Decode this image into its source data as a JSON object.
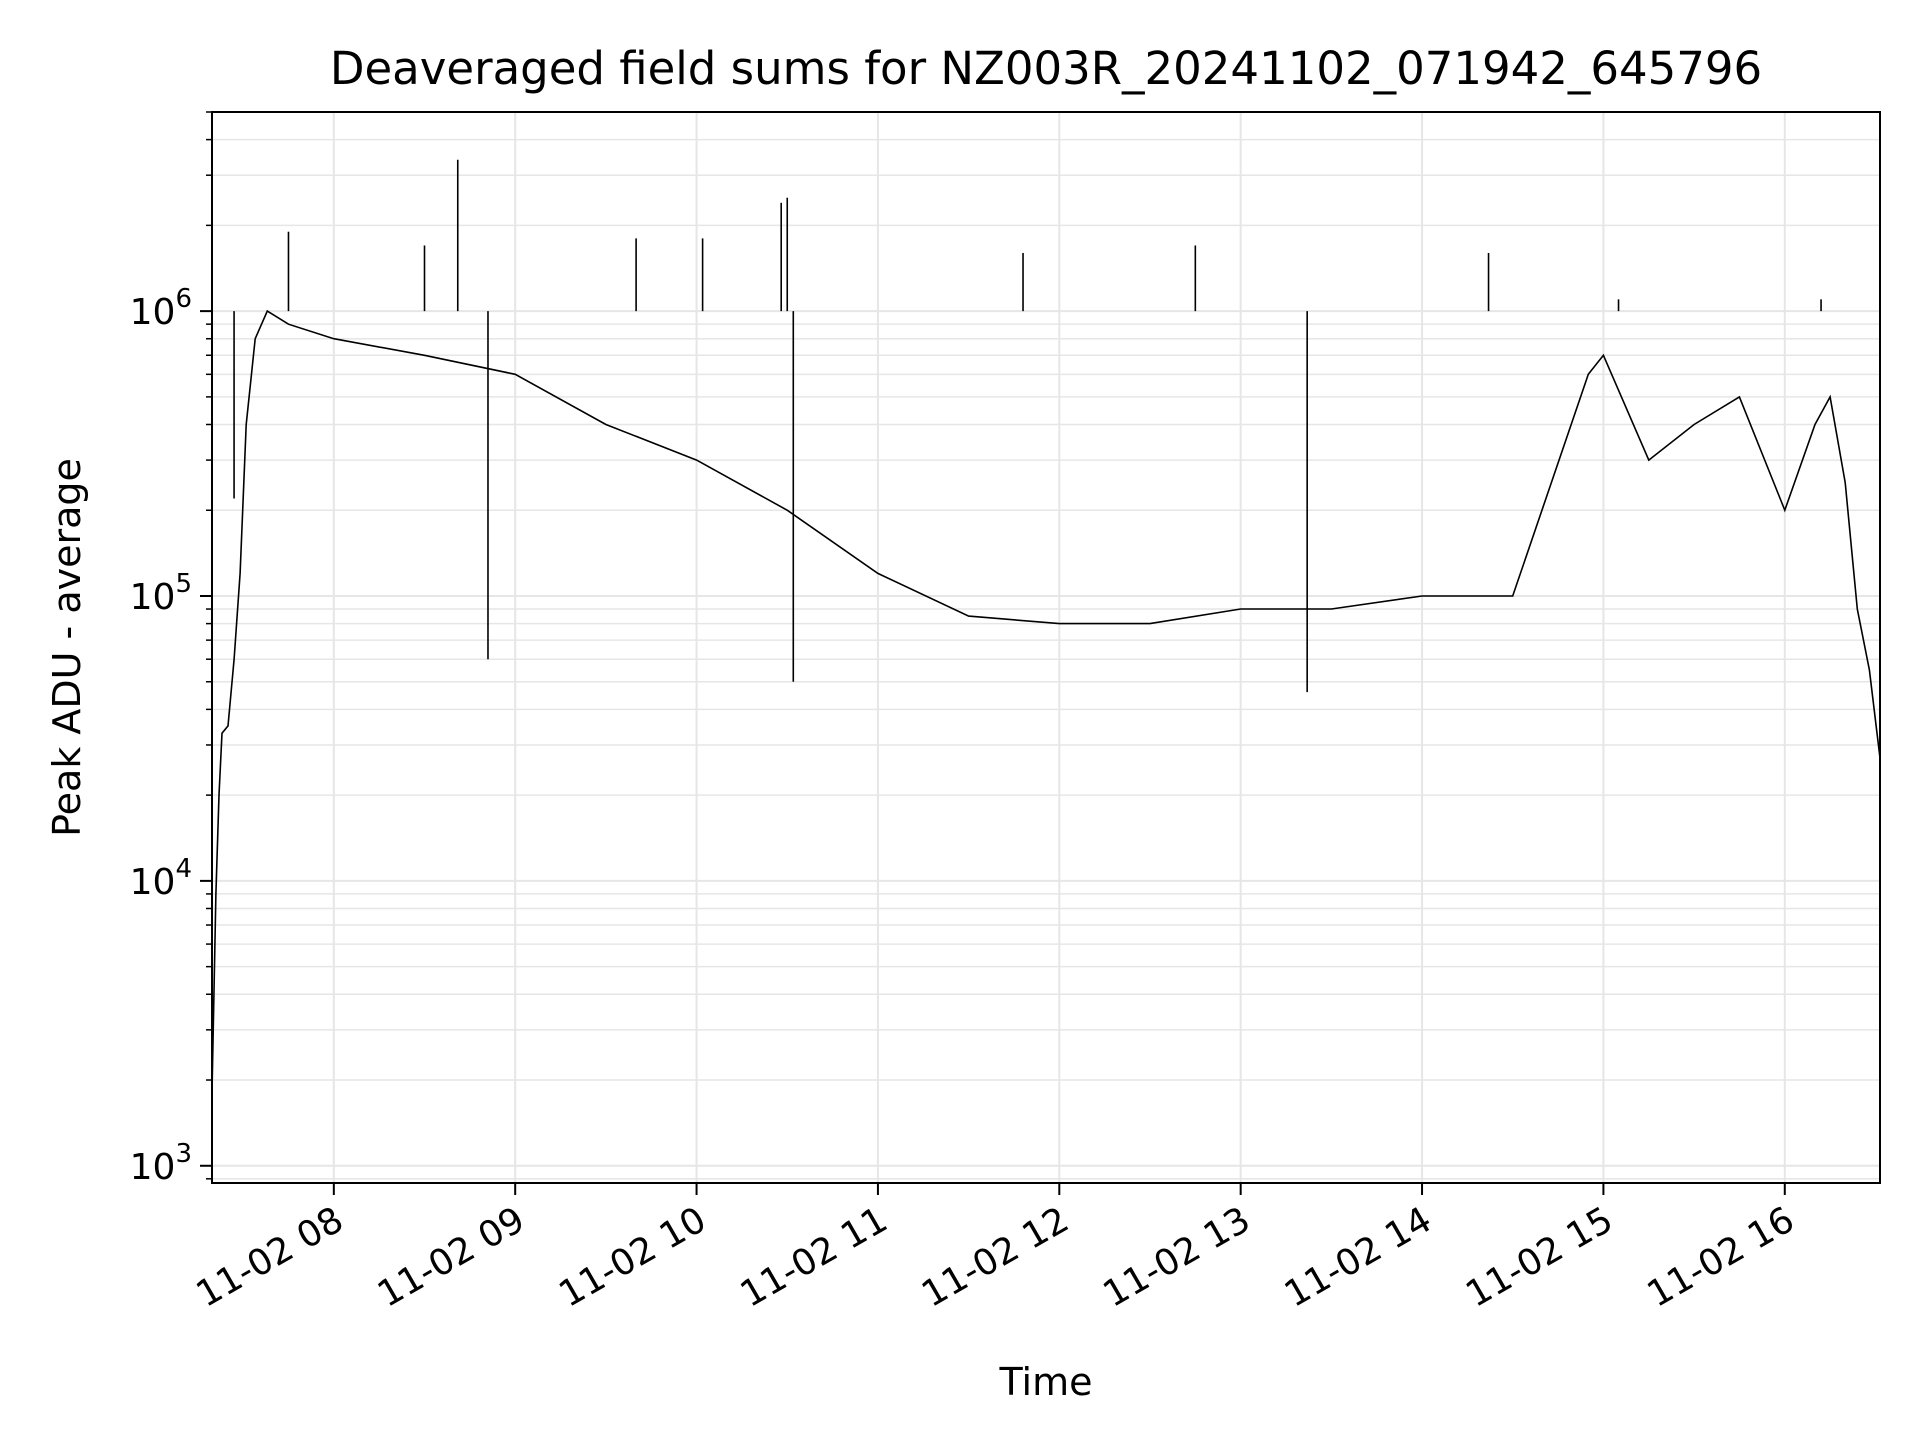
{
  "chart_data": {
    "type": "line",
    "title": "Deaveraged field sums for NZ003R_20241102_071942_645796",
    "xlabel": "Time",
    "ylabel": "Peak ADU - average",
    "yscale": "log",
    "ylim": [
      870,
      5000000
    ],
    "xlim": [
      "2024-11-02 07:19:42",
      "2024-11-02 16:31:30"
    ],
    "grid": true,
    "line_color": "#000000",
    "x_ticks": [
      {
        "t": "2024-11-02 08:00",
        "label": "11-02 08"
      },
      {
        "t": "2024-11-02 09:00",
        "label": "11-02 09"
      },
      {
        "t": "2024-11-02 10:00",
        "label": "11-02 10"
      },
      {
        "t": "2024-11-02 11:00",
        "label": "11-02 11"
      },
      {
        "t": "2024-11-02 12:00",
        "label": "11-02 12"
      },
      {
        "t": "2024-11-02 13:00",
        "label": "11-02 13"
      },
      {
        "t": "2024-11-02 14:00",
        "label": "11-02 14"
      },
      {
        "t": "2024-11-02 15:00",
        "label": "11-02 15"
      },
      {
        "t": "2024-11-02 16:00",
        "label": "11-02 16"
      }
    ],
    "y_ticks": [
      {
        "value": 1000,
        "base": "10",
        "exp": "3"
      },
      {
        "value": 10000,
        "base": "10",
        "exp": "4"
      },
      {
        "value": 100000,
        "base": "10",
        "exp": "5"
      },
      {
        "value": 1000000,
        "base": "10",
        "exp": "6"
      }
    ],
    "series": [
      {
        "color": "#000000",
        "points": [
          [
            "2024-11-02 07:19:42",
            1800
          ],
          [
            "2024-11-02 07:21:00",
            9000
          ],
          [
            "2024-11-02 07:22:00",
            20000
          ],
          [
            "2024-11-02 07:23:00",
            33000
          ],
          [
            "2024-11-02 07:25:00",
            35000
          ],
          [
            "2024-11-02 07:27:00",
            60000
          ],
          [
            "2024-11-02 07:29:00",
            120000
          ],
          [
            "2024-11-02 07:31:00",
            400000
          ],
          [
            "2024-11-02 07:34:00",
            800000
          ],
          [
            "2024-11-02 07:38:00",
            1000000
          ],
          [
            "2024-11-02 07:45:00",
            900000
          ],
          [
            "2024-11-02 08:00:00",
            800000
          ],
          [
            "2024-11-02 08:30:00",
            700000
          ],
          [
            "2024-11-02 09:00:00",
            600000
          ],
          [
            "2024-11-02 09:30:00",
            400000
          ],
          [
            "2024-11-02 10:00:00",
            300000
          ],
          [
            "2024-11-02 10:30:00",
            200000
          ],
          [
            "2024-11-02 11:00:00",
            120000
          ],
          [
            "2024-11-02 11:30:00",
            85000
          ],
          [
            "2024-11-02 12:00:00",
            80000
          ],
          [
            "2024-11-02 12:30:00",
            80000
          ],
          [
            "2024-11-02 13:00:00",
            90000
          ],
          [
            "2024-11-02 13:30:00",
            90000
          ],
          [
            "2024-11-02 14:00:00",
            100000
          ],
          [
            "2024-11-02 14:30:00",
            100000
          ],
          [
            "2024-11-02 14:55:00",
            600000
          ],
          [
            "2024-11-02 15:00:00",
            700000
          ],
          [
            "2024-11-02 15:15:00",
            300000
          ],
          [
            "2024-11-02 15:30:00",
            400000
          ],
          [
            "2024-11-02 15:45:00",
            500000
          ],
          [
            "2024-11-02 16:00:00",
            200000
          ],
          [
            "2024-11-02 16:10:00",
            400000
          ],
          [
            "2024-11-02 16:15:00",
            500000
          ],
          [
            "2024-11-02 16:20:00",
            250000
          ],
          [
            "2024-11-02 16:24:00",
            90000
          ],
          [
            "2024-11-02 16:28:00",
            55000
          ],
          [
            "2024-11-02 16:31:30",
            27000
          ]
        ],
        "spikes": [
          [
            "2024-11-02 07:27:00",
            220000
          ],
          [
            "2024-11-02 07:45:00",
            1900000
          ],
          [
            "2024-11-02 08:30:00",
            1700000
          ],
          [
            "2024-11-02 08:41:00",
            3400000
          ],
          [
            "2024-11-02 08:51:00",
            60000
          ],
          [
            "2024-11-02 09:40:00",
            1800000
          ],
          [
            "2024-11-02 10:02:00",
            1800000
          ],
          [
            "2024-11-02 10:28:00",
            2400000
          ],
          [
            "2024-11-02 10:30:00",
            2500000
          ],
          [
            "2024-11-02 10:32:00",
            50000
          ],
          [
            "2024-11-02 11:48:00",
            1600000
          ],
          [
            "2024-11-02 12:45:00",
            1700000
          ],
          [
            "2024-11-02 13:22:00",
            46000
          ],
          [
            "2024-11-02 14:22:00",
            1600000
          ],
          [
            "2024-11-02 15:05:00",
            1100000
          ],
          [
            "2024-11-02 16:12:00",
            1100000
          ]
        ]
      }
    ]
  }
}
